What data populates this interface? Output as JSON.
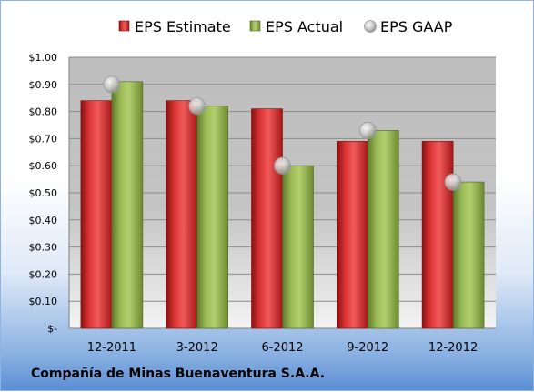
{
  "company": "Compañía de Minas Buenaventura S.A.A.",
  "colors": {
    "estimate": "#d42a2a",
    "actual": "#8fb04a",
    "gaap": "#c0c0c0"
  },
  "chart_data": {
    "type": "bar",
    "title": "",
    "xlabel": "",
    "ylabel": "",
    "categories": [
      "12-2011",
      "3-2012",
      "6-2012",
      "9-2012",
      "12-2012"
    ],
    "series": [
      {
        "name": "EPS Estimate",
        "kind": "bar",
        "values": [
          0.84,
          0.84,
          0.81,
          0.69,
          0.69
        ]
      },
      {
        "name": "EPS Actual",
        "kind": "bar",
        "values": [
          0.91,
          0.82,
          0.6,
          0.73,
          0.54
        ]
      },
      {
        "name": "EPS GAAP",
        "kind": "marker",
        "values": [
          0.9,
          0.82,
          0.6,
          0.73,
          0.54
        ]
      }
    ],
    "ylim": [
      0,
      1.0
    ],
    "yticks": [
      0,
      0.1,
      0.2,
      0.3,
      0.4,
      0.5,
      0.6,
      0.7,
      0.8,
      0.9,
      1.0
    ],
    "ytick_labels": [
      "$-",
      "$0.10",
      "$0.20",
      "$0.30",
      "$0.40",
      "$0.50",
      "$0.60",
      "$0.70",
      "$0.80",
      "$0.90",
      "$1.00"
    ],
    "grid": true,
    "legend": "top"
  }
}
